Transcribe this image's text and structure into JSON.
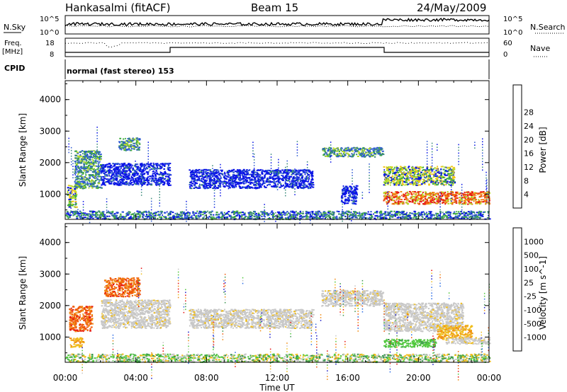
{
  "header": {
    "station": "Hankasalmi (fitACF)",
    "beam": "Beam 15",
    "date": "24/May/2009"
  },
  "top_strip": {
    "left_label": "N.Sky",
    "right_label": "N.Search",
    "left_ticks": [
      "10^5",
      "10^0"
    ],
    "right_ticks": [
      "10^5",
      "10^0"
    ]
  },
  "freq_strip": {
    "left_label_1": "Freq.",
    "left_label_2": "[MHz]",
    "right_label": "Nave",
    "left_ticks": [
      "18",
      "8"
    ],
    "right_ticks": [
      "60",
      "0"
    ]
  },
  "cpid": {
    "label": "CPID",
    "text": "normal (fast stereo) 153"
  },
  "chart_data": [
    {
      "type": "heatmap",
      "ylabel": "Slant Range [km]",
      "xlabel": "Time UT",
      "x_ticks": [
        "00:00",
        "04:00",
        "08:00",
        "12:00",
        "16:00",
        "20:00",
        "00:00"
      ],
      "y_ticks": [
        "1000",
        "2000",
        "3000",
        "4000"
      ],
      "ylim": [
        200,
        4600
      ],
      "colorbar": {
        "label": "Power [dB]",
        "ticks": [
          "4",
          "8",
          "12",
          "16",
          "20",
          "24",
          "28"
        ],
        "colors": [
          "#0a14e6",
          "#2d5ad2",
          "#3a8a7a",
          "#3caa3c",
          "#b4dc28",
          "#f0c81e",
          "#f08c14",
          "#f05a0a",
          "#e61414"
        ]
      },
      "features": [
        {
          "t_start": 0.0,
          "t_end": 24.0,
          "range_km_low": 220,
          "range_km_high": 480,
          "level": "mixed"
        },
        {
          "t_start": 0.1,
          "t_end": 0.6,
          "range_km_low": 600,
          "range_km_high": 1300,
          "level": "high"
        },
        {
          "t_start": 0.5,
          "t_end": 2.0,
          "range_km_low": 1200,
          "range_km_high": 2400,
          "level": "medium"
        },
        {
          "t_start": 2.0,
          "t_end": 5.9,
          "range_km_low": 1300,
          "range_km_high": 2000,
          "level": "low"
        },
        {
          "t_start": 3.0,
          "t_end": 4.2,
          "range_km_low": 2400,
          "range_km_high": 2800,
          "level": "medium"
        },
        {
          "t_start": 7.0,
          "t_end": 14.0,
          "range_km_low": 1200,
          "range_km_high": 1800,
          "level": "low"
        },
        {
          "t_start": 14.5,
          "t_end": 18.0,
          "range_km_low": 2200,
          "range_km_high": 2500,
          "level": "medium"
        },
        {
          "t_start": 15.6,
          "t_end": 16.5,
          "range_km_low": 700,
          "range_km_high": 1300,
          "level": "low"
        },
        {
          "t_start": 18.0,
          "t_end": 22.0,
          "range_km_low": 1300,
          "range_km_high": 1900,
          "level": "high"
        },
        {
          "t_start": 18.0,
          "t_end": 24.0,
          "range_km_low": 700,
          "range_km_high": 1100,
          "level": "very-high"
        }
      ]
    },
    {
      "type": "heatmap",
      "ylabel": "Slant Range [km]",
      "xlabel": "Time UT",
      "x_ticks": [
        "00:00",
        "04:00",
        "08:00",
        "12:00",
        "16:00",
        "20:00",
        "00:00"
      ],
      "y_ticks": [
        "1000",
        "2000",
        "3000",
        "4000"
      ],
      "ylim": [
        200,
        4600
      ],
      "colorbar": {
        "label": "Velocity [m s^-1]",
        "ticks": [
          "1000",
          "500",
          "100",
          "25",
          "-25",
          "-100",
          "-500",
          "-1000"
        ],
        "colors": [
          "#1e1ec8",
          "#2d6ee6",
          "#3c9650",
          "#50c83c",
          "#c8c8c8",
          "#f0be1e",
          "#f08c14",
          "#f05a0a",
          "#e61414"
        ]
      },
      "features": [
        {
          "t_start": 0.0,
          "t_end": 24.0,
          "range_km_low": 220,
          "range_km_high": 480,
          "level": "mixed"
        },
        {
          "t_start": 0.2,
          "t_end": 1.5,
          "range_km_low": 1200,
          "range_km_high": 2000,
          "level": "negative-strong"
        },
        {
          "t_start": 0.2,
          "t_end": 1.0,
          "range_km_low": 700,
          "range_km_high": 1000,
          "level": "negative-weak"
        },
        {
          "t_start": 2.2,
          "t_end": 4.2,
          "range_km_low": 2300,
          "range_km_high": 2900,
          "level": "negative-strong"
        },
        {
          "t_start": 2.0,
          "t_end": 5.9,
          "range_km_low": 1300,
          "range_km_high": 2200,
          "level": "near-zero"
        },
        {
          "t_start": 7.0,
          "t_end": 14.0,
          "range_km_low": 1300,
          "range_km_high": 1900,
          "level": "near-zero"
        },
        {
          "t_start": 14.5,
          "t_end": 18.0,
          "range_km_low": 2000,
          "range_km_high": 2500,
          "level": "near-zero"
        },
        {
          "t_start": 18.0,
          "t_end": 22.5,
          "range_km_low": 1200,
          "range_km_high": 2100,
          "level": "near-zero"
        },
        {
          "t_start": 18.0,
          "t_end": 21.0,
          "range_km_low": 700,
          "range_km_high": 950,
          "level": "positive"
        },
        {
          "t_start": 21.0,
          "t_end": 23.0,
          "range_km_low": 950,
          "range_km_high": 1400,
          "level": "negative-weak"
        },
        {
          "t_start": 21.5,
          "t_end": 24.0,
          "range_km_low": 800,
          "range_km_high": 1000,
          "level": "near-zero"
        }
      ]
    }
  ]
}
